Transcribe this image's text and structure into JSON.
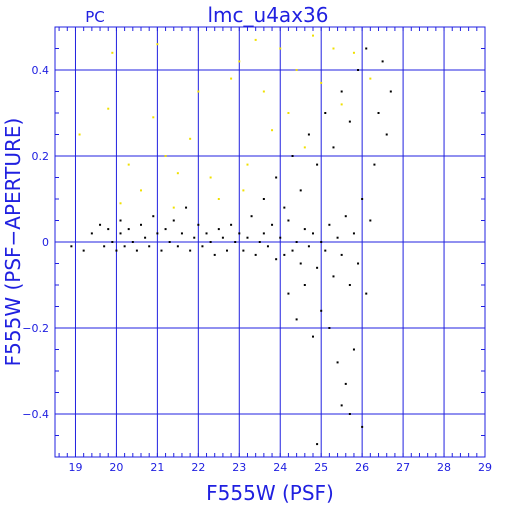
{
  "colors": {
    "axis": "#2020e0",
    "grid": "#2020e0",
    "series_black": "#000000",
    "series_yellow": "#f0e000"
  },
  "chart_data": {
    "type": "scatter",
    "title": "lmc_u4ax36",
    "corner_label": "PC",
    "xlabel": "F555W (PSF)",
    "ylabel": "F555W (PSF−APERTURE)",
    "xlim": [
      18.5,
      29
    ],
    "ylim": [
      -0.5,
      0.5
    ],
    "xticks": [
      19,
      20,
      21,
      22,
      23,
      24,
      25,
      26,
      27,
      28,
      29
    ],
    "yticks": [
      -0.4,
      -0.2,
      0,
      0.2,
      0.4
    ],
    "ytick_labels": [
      "−0.4",
      "−0.2",
      "0",
      "0.2",
      "0.4"
    ],
    "grid": true,
    "series": [
      {
        "color": "#000000",
        "points": [
          [
            18.9,
            -0.01
          ],
          [
            19.2,
            -0.02
          ],
          [
            19.4,
            0.02
          ],
          [
            19.6,
            0.04
          ],
          [
            19.7,
            -0.01
          ],
          [
            19.8,
            0.03
          ],
          [
            19.9,
            0.0
          ],
          [
            20.0,
            -0.02
          ],
          [
            20.1,
            0.02
          ],
          [
            20.1,
            0.05
          ],
          [
            20.2,
            -0.01
          ],
          [
            20.3,
            0.03
          ],
          [
            20.4,
            0.0
          ],
          [
            20.5,
            -0.02
          ],
          [
            20.6,
            0.04
          ],
          [
            20.7,
            0.01
          ],
          [
            20.8,
            -0.01
          ],
          [
            20.9,
            0.06
          ],
          [
            21.0,
            0.02
          ],
          [
            21.1,
            -0.02
          ],
          [
            21.2,
            0.03
          ],
          [
            21.3,
            0.0
          ],
          [
            21.4,
            0.05
          ],
          [
            21.5,
            -0.01
          ],
          [
            21.6,
            0.02
          ],
          [
            21.7,
            0.08
          ],
          [
            21.8,
            -0.02
          ],
          [
            21.9,
            0.01
          ],
          [
            22.0,
            0.04
          ],
          [
            22.1,
            -0.01
          ],
          [
            22.2,
            0.02
          ],
          [
            22.3,
            0.0
          ],
          [
            22.4,
            -0.03
          ],
          [
            22.5,
            0.03
          ],
          [
            22.6,
            0.01
          ],
          [
            22.7,
            -0.02
          ],
          [
            22.8,
            0.04
          ],
          [
            22.9,
            0.0
          ],
          [
            23.0,
            0.02
          ],
          [
            23.1,
            -0.02
          ],
          [
            23.2,
            0.01
          ],
          [
            23.3,
            0.06
          ],
          [
            23.4,
            -0.03
          ],
          [
            23.5,
            0.0
          ],
          [
            23.6,
            0.02
          ],
          [
            23.7,
            -0.01
          ],
          [
            23.8,
            0.04
          ],
          [
            23.9,
            -0.04
          ],
          [
            24.0,
            0.01
          ],
          [
            24.1,
            -0.03
          ],
          [
            24.2,
            0.05
          ],
          [
            24.3,
            -0.02
          ],
          [
            24.4,
            0.0
          ],
          [
            24.5,
            -0.05
          ],
          [
            24.6,
            0.03
          ],
          [
            24.7,
            -0.01
          ],
          [
            24.8,
            0.02
          ],
          [
            24.9,
            -0.06
          ],
          [
            25.0,
            0.0
          ],
          [
            25.1,
            -0.02
          ],
          [
            25.2,
            0.04
          ],
          [
            25.3,
            -0.08
          ],
          [
            25.4,
            0.01
          ],
          [
            25.5,
            -0.03
          ],
          [
            25.6,
            0.06
          ],
          [
            25.7,
            -0.1
          ],
          [
            25.8,
            0.02
          ],
          [
            25.9,
            -0.05
          ],
          [
            26.0,
            0.1
          ],
          [
            26.1,
            -0.12
          ],
          [
            26.2,
            0.05
          ],
          [
            26.3,
            0.18
          ],
          [
            26.4,
            0.3
          ],
          [
            26.5,
            0.42
          ],
          [
            26.6,
            0.25
          ],
          [
            26.7,
            0.35
          ],
          [
            23.6,
            0.1
          ],
          [
            23.9,
            0.15
          ],
          [
            24.1,
            0.08
          ],
          [
            24.3,
            0.2
          ],
          [
            24.5,
            0.12
          ],
          [
            24.7,
            0.25
          ],
          [
            24.9,
            0.18
          ],
          [
            25.1,
            0.3
          ],
          [
            25.3,
            0.22
          ],
          [
            25.5,
            0.35
          ],
          [
            25.7,
            0.28
          ],
          [
            25.9,
            0.4
          ],
          [
            26.1,
            0.45
          ],
          [
            24.2,
            -0.12
          ],
          [
            24.4,
            -0.18
          ],
          [
            24.6,
            -0.1
          ],
          [
            24.8,
            -0.22
          ],
          [
            25.0,
            -0.16
          ],
          [
            25.2,
            -0.2
          ],
          [
            25.4,
            -0.28
          ],
          [
            25.6,
            -0.33
          ],
          [
            25.8,
            -0.25
          ],
          [
            26.0,
            -0.43
          ],
          [
            24.9,
            -0.47
          ],
          [
            25.5,
            -0.38
          ],
          [
            25.7,
            -0.4
          ]
        ]
      },
      {
        "color": "#f0e000",
        "points": [
          [
            19.1,
            0.25
          ],
          [
            19.8,
            0.31
          ],
          [
            19.9,
            0.44
          ],
          [
            20.1,
            0.09
          ],
          [
            20.3,
            0.18
          ],
          [
            20.6,
            0.12
          ],
          [
            20.9,
            0.29
          ],
          [
            21.0,
            0.46
          ],
          [
            21.2,
            0.2
          ],
          [
            21.5,
            0.16
          ],
          [
            21.8,
            0.24
          ],
          [
            22.0,
            0.35
          ],
          [
            22.3,
            0.15
          ],
          [
            22.5,
            0.1
          ],
          [
            22.8,
            0.38
          ],
          [
            23.0,
            0.42
          ],
          [
            23.2,
            0.18
          ],
          [
            23.4,
            0.47
          ],
          [
            23.6,
            0.35
          ],
          [
            23.8,
            0.26
          ],
          [
            24.0,
            0.45
          ],
          [
            24.2,
            0.3
          ],
          [
            24.4,
            0.4
          ],
          [
            24.6,
            0.22
          ],
          [
            24.8,
            0.48
          ],
          [
            25.0,
            0.37
          ],
          [
            25.3,
            0.45
          ],
          [
            25.5,
            0.32
          ],
          [
            25.8,
            0.44
          ],
          [
            26.2,
            0.38
          ],
          [
            23.1,
            0.12
          ],
          [
            21.4,
            0.08
          ]
        ]
      }
    ]
  }
}
